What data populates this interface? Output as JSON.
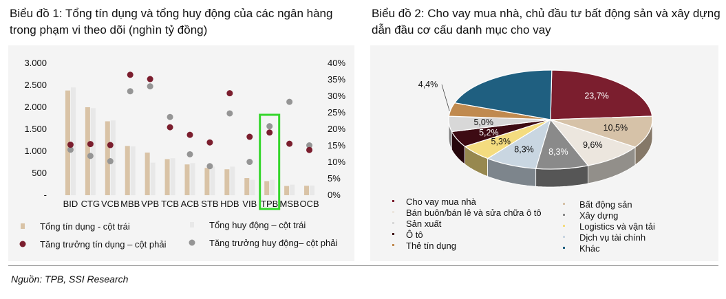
{
  "source": "Nguồn: TPB, SSI Research",
  "colors": {
    "credit_bar": "#d9c3a6",
    "deposit_bar": "#e8e8e8",
    "credit_growth": "#7b1e2e",
    "deposit_growth": "#959595",
    "highlight": "#35d62b"
  },
  "chart_data": [
    {
      "type": "bar",
      "title": "Biểu đồ 1: Tổng tín dụng và tổng huy động của các ngân hàng trong phạm vi theo dõi (nghìn tỷ đồng)",
      "categories": [
        "BID",
        "CTG",
        "VCB",
        "MBB",
        "VPB",
        "TCB",
        "ACB",
        "STB",
        "HDB",
        "VIB",
        "TPB",
        "MSB",
        "OCB"
      ],
      "highlight_category": "TPB",
      "y_left": {
        "ticks": [
          "-",
          "500",
          "1.000",
          "1.500",
          "2.000",
          "2.500",
          "3.000"
        ],
        "min": 0,
        "max": 3000
      },
      "y_right": {
        "ticks": [
          "0%",
          "5%",
          "10%",
          "15%",
          "20%",
          "25%",
          "30%",
          "35%",
          "40%"
        ],
        "min": 0,
        "max": 40
      },
      "series": [
        {
          "name": "Tổng tín dụng - cột trái",
          "type": "bar",
          "axis": "left",
          "values": [
            2380,
            2000,
            1680,
            1120,
            970,
            820,
            700,
            620,
            590,
            390,
            320,
            210,
            215
          ]
        },
        {
          "name": "Tổng huy động – cột trái",
          "type": "bar",
          "axis": "left",
          "values": [
            2450,
            1980,
            1700,
            1110,
            740,
            840,
            730,
            650,
            650,
            350,
            350,
            240,
            220
          ]
        },
        {
          "name": "Tăng trưởng tín dụng – cột phải",
          "type": "scatter",
          "axis": "right",
          "values": [
            15.3,
            15.5,
            15.2,
            36.5,
            35.2,
            20.6,
            18.3,
            16.0,
            30.9,
            17.7,
            19.0,
            15.6,
            13.7
          ]
        },
        {
          "name": "Tăng trưởng huy động– cột phải",
          "type": "scatter",
          "axis": "right",
          "values": [
            13.8,
            11.9,
            10.3,
            31.5,
            33.0,
            23.7,
            12.4,
            8.8,
            24.8,
            10.1,
            20.9,
            28.3,
            15.1
          ]
        }
      ],
      "legend": [
        {
          "label": "Tổng tín dụng - cột trái",
          "kind": "bar",
          "color": "#d9c3a6"
        },
        {
          "label": "Tổng huy động – cột trái",
          "kind": "bar",
          "color": "#e8e8e8"
        },
        {
          "label": "Tăng trưởng tín dụng – cột phải",
          "kind": "dot",
          "color": "#7b1e2e"
        },
        {
          "label": "Tăng trưởng huy động– cột phải",
          "kind": "dot",
          "color": "#959595"
        }
      ]
    },
    {
      "type": "pie",
      "title": "Biểu đồ 2: Cho vay mua nhà, chủ đầu tư bất động sản và xây dựng dẫn đầu cơ cấu danh mục cho vay",
      "slices": [
        {
          "name": "Cho vay mua nhà",
          "value": 23.7,
          "label": "23,7%",
          "color": "#7b1e2e"
        },
        {
          "name": "Bất động sản",
          "value": 10.5,
          "label": "10,5%",
          "color": "#d6c2a8"
        },
        {
          "name": "Bán buôn/bán lẻ và sửa chữa ô tô",
          "value": 9.6,
          "label": "9,6%",
          "color": "#ece6de"
        },
        {
          "name": "Xây dựng",
          "value": 8.3,
          "label": "8,3%",
          "color": "#8a8a8a"
        },
        {
          "name": "Dịch vụ tài chính",
          "value": 8.3,
          "label": "8,3%",
          "color": "#c9d6e1"
        },
        {
          "name": "Logistics và vận tải",
          "value": 5.3,
          "label": "5,3%",
          "color": "#f4dc7f"
        },
        {
          "name": "Ô tô",
          "value": 5.2,
          "label": "5,2%",
          "color": "#3d0b13"
        },
        {
          "name": "Sản xuất",
          "value": 5.0,
          "label": "5,0%",
          "color": "#d8d8d8"
        },
        {
          "name": "Thẻ tín dụng",
          "value": 4.4,
          "label": "4,4%",
          "color": "#c08a4f"
        },
        {
          "name": "Khác",
          "value": 19.7,
          "label": "",
          "color": "#1f5f80"
        }
      ],
      "legend": [
        {
          "label": "Cho vay mua nhà",
          "color": "#7b1e2e"
        },
        {
          "label": "Bất động sản",
          "color": "#d6c2a8"
        },
        {
          "label": "Bán buôn/bán lẻ và sửa chữa ô tô",
          "color": "#ece6de"
        },
        {
          "label": "Xây dựng",
          "color": "#8a8a8a"
        },
        {
          "label": "Sản xuất",
          "color": "#d8d8d8"
        },
        {
          "label": "Logistics và vận tải",
          "color": "#f4dc7f"
        },
        {
          "label": "Ô tô",
          "color": "#3d0b13"
        },
        {
          "label": "Dịch vụ tài chính",
          "color": "#c9d6e1"
        },
        {
          "label": "Thẻ tín dụng",
          "color": "#c08a4f"
        },
        {
          "label": "Khác",
          "color": "#1f5f80"
        }
      ]
    }
  ]
}
